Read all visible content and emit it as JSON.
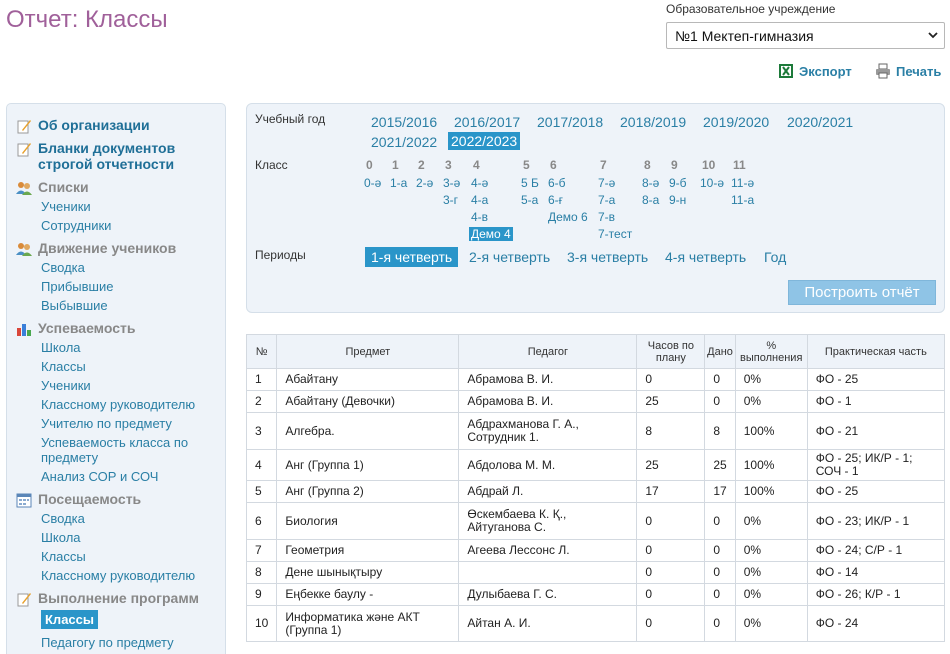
{
  "page_title": "Отчет: Классы",
  "org": {
    "label": "Образовательное учреждение",
    "selected": "№1 Мектеп-гимназия"
  },
  "tools": {
    "export": "Экспорт",
    "print": "Печать"
  },
  "sidebar": {
    "categories": [
      {
        "label": "Об организации",
        "icon": "edit-icon",
        "style": "link"
      },
      {
        "label": "Бланки документов строгой отчетности",
        "icon": "edit-icon",
        "style": "link"
      },
      {
        "label": "Списки",
        "icon": "users-icon",
        "style": "grey",
        "items": [
          "Ученики",
          "Сотрудники"
        ]
      },
      {
        "label": "Движение учеников",
        "icon": "users-icon",
        "style": "grey",
        "items": [
          "Сводка",
          "Прибывшие",
          "Выбывшие"
        ]
      },
      {
        "label": "Успеваемость",
        "icon": "bar-chart-icon",
        "style": "grey",
        "items": [
          "Школа",
          "Классы",
          "Ученики",
          "Классному руководителю",
          "Учителю по предмету",
          "Успеваемость класса по предмету",
          "Анализ СОР и СОЧ"
        ]
      },
      {
        "label": "Посещаемость",
        "icon": "calendar-icon",
        "style": "grey",
        "items": [
          "Сводка",
          "Школа",
          "Классы",
          "Классному руководителю"
        ]
      },
      {
        "label": "Выполнение программ",
        "icon": "edit-icon",
        "style": "grey",
        "items": [
          "Классы",
          "Педагогу по предмету"
        ],
        "active_item": "Классы"
      }
    ]
  },
  "filter": {
    "year_label": "Учебный год",
    "years": [
      "2015/2016",
      "2016/2017",
      "2017/2018",
      "2018/2019",
      "2019/2020",
      "2020/2021",
      "2021/2022",
      "2022/2023"
    ],
    "selected_year": "2022/2023",
    "class_label": "Класс",
    "grades": [
      {
        "grade": "0",
        "classes": [
          "0-ә"
        ]
      },
      {
        "grade": "1",
        "classes": [
          "1-а"
        ]
      },
      {
        "grade": "2",
        "classes": [
          "2-ә"
        ]
      },
      {
        "grade": "3",
        "classes": [
          "3-ә",
          "3-г"
        ]
      },
      {
        "grade": "4",
        "classes": [
          "4-ә",
          "4-а",
          "4-в",
          "Демо 4"
        ]
      },
      {
        "grade": "5",
        "classes": [
          "5 Б",
          "5-а"
        ]
      },
      {
        "grade": "6",
        "classes": [
          "6-б",
          "6-ғ",
          "Демо 6"
        ]
      },
      {
        "grade": "7",
        "classes": [
          "7-ә",
          "7-а",
          "7-в",
          "7-тест"
        ]
      },
      {
        "grade": "8",
        "classes": [
          "8-ә",
          "8-а"
        ]
      },
      {
        "grade": "9",
        "classes": [
          "9-б",
          "9-н"
        ]
      },
      {
        "grade": "10",
        "classes": [
          "10-ә"
        ]
      },
      {
        "grade": "11",
        "classes": [
          "11-ә",
          "11-а"
        ]
      }
    ],
    "selected_class": "Демо 4",
    "periods_label": "Периоды",
    "periods": [
      "1-я четверть",
      "2-я четверть",
      "3-я четверть",
      "4-я четверть",
      "Год"
    ],
    "selected_period": "1-я четверть",
    "build_button": "Построить отчёт"
  },
  "table": {
    "columns": [
      "№",
      "Предмет",
      "Педагог",
      "Часов по плану",
      "Дано",
      "% выполнения",
      "Практическая часть"
    ],
    "rows": [
      [
        "1",
        "Абайтану",
        "Абрамова В. И.",
        "0",
        "0",
        "0%",
        "ФО - 25"
      ],
      [
        "2",
        "Абайтану (Девочки)",
        "Абрамова В. И.",
        "25",
        "0",
        "0%",
        "ФО - 1"
      ],
      [
        "3",
        "Алгебра.",
        "Абдрахманова Г. А., Сотрудник 1.",
        "8",
        "8",
        "100%",
        "ФО - 21"
      ],
      [
        "4",
        "Анг (Группа 1)",
        "Абдолова М. М.",
        "25",
        "25",
        "100%",
        "ФО - 25; ИК/Р - 1; СОЧ - 1"
      ],
      [
        "5",
        "Анг (Группа 2)",
        "Абдрай Л.",
        "17",
        "17",
        "100%",
        "ФО - 25"
      ],
      [
        "6",
        "Биология",
        "Өскембаева К. Қ., Айтуганова С.",
        "0",
        "0",
        "0%",
        "ФО - 23; ИК/Р - 1"
      ],
      [
        "7",
        "Геометрия",
        "Агеева Лессонс Л.",
        "0",
        "0",
        "0%",
        "ФО - 24; С/Р - 1"
      ],
      [
        "8",
        "Дене шынықтыру",
        "",
        "0",
        "0",
        "0%",
        "ФО - 14"
      ],
      [
        "9",
        "Еңбекке баулу -",
        "Дулыбаева Г. С.",
        "0",
        "0",
        "0%",
        "ФО - 26; К/Р - 1"
      ],
      [
        "10",
        "Информатика және АКТ (Группа 1)",
        "Айтан А. И.",
        "0",
        "0",
        "0%",
        "ФО - 24"
      ]
    ]
  }
}
